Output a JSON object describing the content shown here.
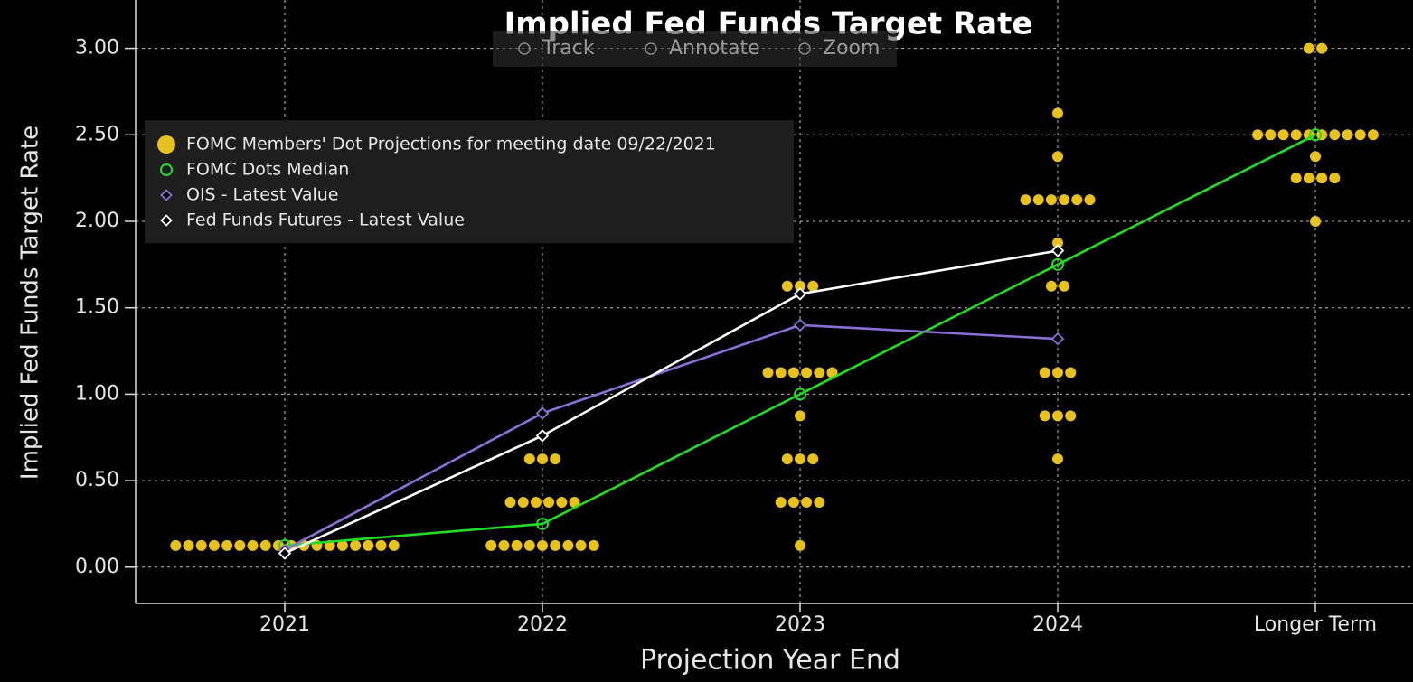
{
  "toolbar": [
    "Track",
    "Annotate",
    "Zoom"
  ],
  "chart_data": {
    "type": "dotplot",
    "title": "Implied Fed Funds Target Rate",
    "x_label": "Projection Year End",
    "y_label": "Implied Fed Funds Target Rate",
    "categories": [
      "2021",
      "2022",
      "2023",
      "2024",
      "Longer Term"
    ],
    "ylim": [
      -0.21,
      3.28
    ],
    "yticks": [
      {
        "value": 0,
        "label": "0.00"
      },
      {
        "value": 0.5,
        "label": "0.50"
      },
      {
        "value": 1,
        "label": "1.00"
      },
      {
        "value": 1.5,
        "label": "1.50"
      },
      {
        "value": 2,
        "label": "2.00"
      },
      {
        "value": 2.5,
        "label": "2.50"
      },
      {
        "value": 3,
        "label": "3.00"
      }
    ],
    "grid": true,
    "legend": "upper left",
    "series": [
      {
        "name": "FOMC Members' Dot Projections for meeting date 09/22/2021",
        "color": "#e8c21c",
        "marker": "dot",
        "values": [
          [
            0.125,
            0.125,
            0.125,
            0.125,
            0.125,
            0.125,
            0.125,
            0.125,
            0.125,
            0.125,
            0.125,
            0.125,
            0.125,
            0.125,
            0.125,
            0.125,
            0.125,
            0.125
          ],
          [
            0.125,
            0.125,
            0.125,
            0.125,
            0.125,
            0.125,
            0.125,
            0.125,
            0.125,
            0.375,
            0.375,
            0.375,
            0.375,
            0.375,
            0.375,
            0.625,
            0.625,
            0.625
          ],
          [
            0.125,
            0.375,
            0.375,
            0.375,
            0.375,
            0.625,
            0.625,
            0.625,
            0.875,
            1.125,
            1.125,
            1.125,
            1.125,
            1.125,
            1.125,
            1.625,
            1.625,
            1.625
          ],
          [
            0.625,
            0.875,
            0.875,
            0.875,
            1.125,
            1.125,
            1.125,
            1.625,
            1.625,
            1.875,
            2.125,
            2.125,
            2.125,
            2.125,
            2.125,
            2.125,
            2.375,
            2.625
          ],
          [
            2,
            2.25,
            2.25,
            2.25,
            2.25,
            2.375,
            2.5,
            2.5,
            2.5,
            2.5,
            2.5,
            2.5,
            2.5,
            2.5,
            2.5,
            2.5,
            3,
            3
          ]
        ]
      },
      {
        "name": "FOMC Dots Median",
        "color": "#22dd22",
        "marker": "circle",
        "values": [
          0.125,
          0.25,
          1,
          1.75,
          2.5
        ]
      },
      {
        "name": "OIS - Latest Value",
        "color": "#8c6fd6",
        "marker": "diamond",
        "values": [
          0.1,
          0.89,
          1.4,
          1.32,
          null
        ]
      },
      {
        "name": "Fed Funds Futures - Latest Value",
        "color": "#ffffff",
        "marker": "diamond",
        "values": [
          0.08,
          0.76,
          1.58,
          1.83,
          null
        ]
      }
    ]
  }
}
